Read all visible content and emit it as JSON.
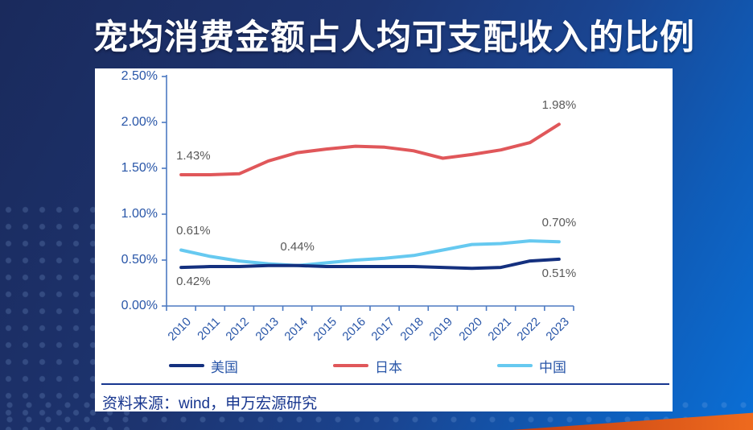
{
  "title": "宠均消费金额占人均可支配收入的比例",
  "source": "资料来源：wind，申万宏源研究",
  "colors": {
    "axis": "#4d7ac2",
    "tick_label": "#2956a8",
    "data_label": "#595959",
    "panel_text": "#17368f",
    "title_text": "#ffffff",
    "accent_orange": "#ee6a1e",
    "background_dark": "#1a2a5c",
    "background_bright": "#0a6fd6"
  },
  "chart_data": {
    "type": "line",
    "categories": [
      "2010",
      "2011",
      "2012",
      "2013",
      "2014",
      "2015",
      "2016",
      "2017",
      "2018",
      "2019",
      "2020",
      "2021",
      "2022",
      "2023"
    ],
    "series": [
      {
        "name": "美国",
        "color": "#14307f",
        "values": [
          0.42,
          0.43,
          0.43,
          0.44,
          0.44,
          0.43,
          0.43,
          0.43,
          0.43,
          0.42,
          0.41,
          0.42,
          0.49,
          0.51
        ]
      },
      {
        "name": "日本",
        "color": "#e0575a",
        "values": [
          1.43,
          1.43,
          1.44,
          1.58,
          1.67,
          1.71,
          1.74,
          1.73,
          1.69,
          1.61,
          1.65,
          1.7,
          1.78,
          1.98
        ]
      },
      {
        "name": "中国",
        "color": "#66c9f0",
        "values": [
          0.61,
          0.54,
          0.49,
          0.46,
          0.44,
          0.47,
          0.5,
          0.52,
          0.55,
          0.61,
          0.67,
          0.68,
          0.71,
          0.7
        ]
      }
    ],
    "title": "宠均消费金额占人均可支配收入的比例",
    "xlabel": "",
    "ylabel": "",
    "ylim": [
      0,
      2.5
    ],
    "y_ticks": [
      "2.50%",
      "2.00%",
      "1.50%",
      "1.00%",
      "0.50%",
      "0.00%"
    ],
    "grid": false,
    "legend_position": "bottom",
    "annotations": [
      {
        "series": "日本",
        "year": "2010",
        "text": "1.43%",
        "placement": "above-start"
      },
      {
        "series": "日本",
        "year": "2023",
        "text": "1.98%",
        "placement": "above"
      },
      {
        "series": "中国",
        "year": "2010",
        "text": "0.61%",
        "placement": "above-start"
      },
      {
        "series": "中国",
        "year": "2014",
        "text": "0.44%",
        "placement": "above"
      },
      {
        "series": "美国",
        "year": "2010",
        "text": "0.42%",
        "placement": "below-start"
      },
      {
        "series": "中国",
        "year": "2023",
        "text": "0.70%",
        "placement": "above"
      },
      {
        "series": "美国",
        "year": "2023",
        "text": "0.51%",
        "placement": "below"
      }
    ]
  }
}
